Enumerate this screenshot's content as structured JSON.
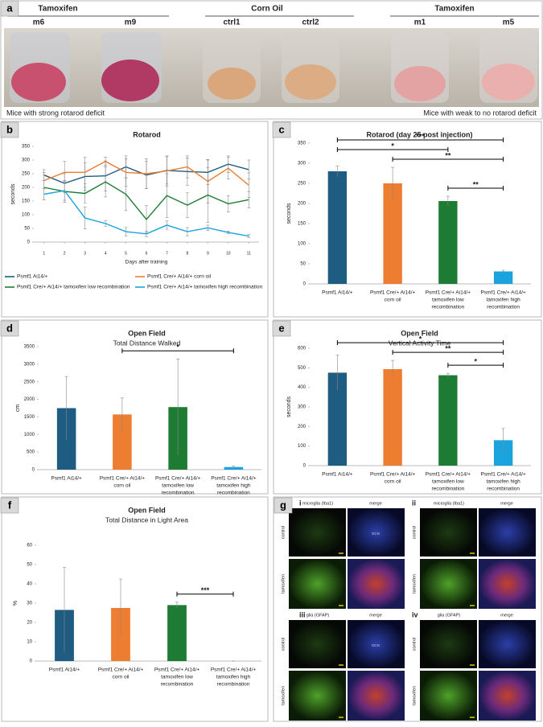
{
  "panel_a": {
    "label": "a",
    "groups": [
      "Tamoxifen",
      "Corn Oil",
      "Tamoxifen"
    ],
    "samples": [
      "m6",
      "m9",
      "ctrl1",
      "ctrl2",
      "m1",
      "m5"
    ],
    "captions": [
      "Mice with strong rotarod deficit",
      "Mice with weak to no rotarod deficit"
    ]
  },
  "chart_data": [
    {
      "type": "line",
      "label": "b",
      "title": "Rotarod",
      "xlabel": "Days after training",
      "ylabel": "seconds",
      "x": [
        1,
        2,
        3,
        4,
        5,
        6,
        7,
        8,
        9,
        10,
        11
      ],
      "xlim": [
        0.5,
        11.5
      ],
      "xticks": [
        1,
        2,
        3,
        4,
        5,
        6,
        7,
        8,
        9,
        10,
        11
      ],
      "ylim": [
        0,
        350
      ],
      "yticks": [
        0,
        50,
        100,
        150,
        200,
        250,
        300,
        350
      ],
      "series": [
        {
          "name": "Psmf1 Ai14/+",
          "color": "#1f5c82",
          "values": [
            245,
            215,
            240,
            242,
            275,
            245,
            262,
            258,
            255,
            285,
            265
          ],
          "errors": [
            20,
            35,
            50,
            55,
            40,
            50,
            50,
            50,
            45,
            30,
            35
          ]
        },
        {
          "name": "Psmf1 Cre/+ Ai14/+ corn oil",
          "color": "#ed7d31",
          "values": [
            225,
            255,
            255,
            295,
            255,
            250,
            260,
            275,
            222,
            270,
            208
          ],
          "errors": [
            30,
            40,
            55,
            15,
            50,
            55,
            55,
            40,
            80,
            40,
            45
          ]
        },
        {
          "name": "Psmf1 Cre/+ Ai14/+ tamoxifen low recombination",
          "color": "#1e7b34",
          "values": [
            200,
            185,
            178,
            220,
            175,
            83,
            170,
            135,
            172,
            140,
            155
          ],
          "errors": [
            45,
            40,
            35,
            55,
            60,
            50,
            80,
            45,
            100,
            30,
            30
          ]
        },
        {
          "name": "Psmf1 Cre/+ Ai14/+ tamoxifen high recombination",
          "color": "#1aa3dc",
          "values": [
            175,
            188,
            88,
            68,
            38,
            30,
            62,
            38,
            52,
            35,
            22
          ],
          "errors": [
            20,
            35,
            40,
            10,
            15,
            10,
            15,
            15,
            10,
            5,
            5
          ]
        }
      ]
    },
    {
      "type": "bar",
      "label": "c",
      "title": "Rotarod (day 25 post injection)",
      "ylabel": "seconds",
      "categories": [
        [
          "Psmf1 Ai14/+"
        ],
        [
          "Psmf1 Cre/+ Ai14/+",
          "corn oil"
        ],
        [
          "Psmf1 Cre/+ Ai14/+",
          "tamoxifen low",
          "recombination"
        ],
        [
          "Psmf1 Cre/+ Ai14/+",
          "tamoxifen high",
          "recombination"
        ]
      ],
      "values": [
        280,
        250,
        206,
        31
      ],
      "errors": [
        13,
        40,
        12,
        3
      ],
      "colors": [
        "#1f5c82",
        "#ed7d31",
        "#1e7b34",
        "#1aa3dc"
      ],
      "ylim": [
        0,
        350
      ],
      "yticks": [
        0,
        50,
        100,
        150,
        200,
        250,
        300,
        350
      ],
      "brackets": [
        {
          "from": 0,
          "to": 3,
          "label": "***"
        },
        {
          "from": 0,
          "to": 2,
          "label": "*"
        },
        {
          "from": 1,
          "to": 3,
          "label": "**"
        },
        {
          "from": 2,
          "to": 3,
          "label": "**"
        }
      ]
    },
    {
      "type": "bar",
      "label": "d",
      "title": "Open Field",
      "subtitle": "Total Distance Walked",
      "ylabel": "cm",
      "categories": [
        [
          "Psmf1 Ai14/+"
        ],
        [
          "Psmf1 Cre/+ Ai14/+",
          "corn oil"
        ],
        [
          "Psmf1 Cre/+ Ai14/+",
          "tamoxifen low",
          "recombination"
        ],
        [
          "Psmf1 Cre/+ Ai14/+",
          "tamoxifen high",
          "recombination"
        ]
      ],
      "values": [
        1750,
        1570,
        1780,
        75
      ],
      "errors": [
        900,
        470,
        1370,
        25
      ],
      "colors": [
        "#1f5c82",
        "#ed7d31",
        "#1e7b34",
        "#1aa3dc"
      ],
      "ylim": [
        0,
        3500
      ],
      "yticks": [
        0,
        500,
        1000,
        1500,
        2000,
        2500,
        3000,
        3500
      ],
      "brackets": [
        {
          "from": 1,
          "to": 3,
          "label": "*"
        }
      ]
    },
    {
      "type": "bar",
      "label": "e",
      "title": "Open Field",
      "subtitle": "Vertical Activity Time",
      "ylabel": "seconds",
      "categories": [
        [
          "Psmf1 Ai14/+"
        ],
        [
          "Psmf1 Cre/+ Ai14/+",
          "corn oil"
        ],
        [
          "Psmf1 Cre/+ Ai14/+",
          "tamoxifen low",
          "recombination"
        ],
        [
          "Psmf1 Cre/+ Ai14/+",
          "tamoxifen high",
          "recombination"
        ]
      ],
      "values": [
        475,
        493,
        462,
        130
      ],
      "errors": [
        90,
        45,
        10,
        60
      ],
      "colors": [
        "#1f5c82",
        "#ed7d31",
        "#1e7b34",
        "#1aa3dc"
      ],
      "ylim": [
        0,
        600
      ],
      "yticks": [
        0,
        100,
        200,
        300,
        400,
        500,
        600
      ],
      "brackets": [
        {
          "from": 0,
          "to": 3,
          "label": "*"
        },
        {
          "from": 1,
          "to": 3,
          "label": "**"
        },
        {
          "from": 2,
          "to": 3,
          "label": "*"
        }
      ]
    },
    {
      "type": "bar",
      "label": "f",
      "title": "Open Field",
      "subtitle": "Total Distance in Light Area",
      "ylabel": "%",
      "categories": [
        [
          "Psmf1 Ai14/+"
        ],
        [
          "Psmf1 Cre/+ Ai14/+",
          "corn oil"
        ],
        [
          "Psmf1 Cre/+ Ai14/+",
          "tamoxifen low",
          "recombination"
        ],
        [
          "Psmf1 Cre/+ Ai14/+",
          "tamoxifen high",
          "recombination"
        ]
      ],
      "values": [
        26.5,
        27.5,
        29,
        0
      ],
      "errors": [
        22,
        15,
        1.5,
        0
      ],
      "colors": [
        "#1f5c82",
        "#ed7d31",
        "#1e7b34",
        "#1aa3dc"
      ],
      "ylim": [
        0,
        60
      ],
      "yticks": [
        0,
        10,
        20,
        30,
        40,
        50,
        60
      ],
      "brackets": [
        {
          "from": 2,
          "to": 3,
          "label": "***"
        }
      ]
    }
  ],
  "panel_g": {
    "label": "g",
    "quadrants": [
      {
        "numeral": "i",
        "stain": "microglia (Iba1)",
        "merge": "merge"
      },
      {
        "numeral": "ii",
        "stain": "microglia (Iba1)",
        "merge": "merge"
      },
      {
        "numeral": "iii",
        "stain": "glia (GFAP)",
        "merge": "merge"
      },
      {
        "numeral": "iv",
        "stain": "glia (GFAP)",
        "merge": "merge"
      }
    ],
    "rows": [
      "control",
      "tamoxifen"
    ],
    "region": "DCN"
  }
}
